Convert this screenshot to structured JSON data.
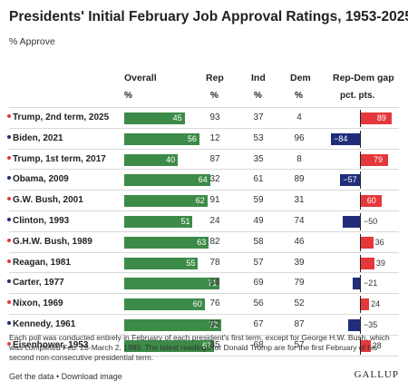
{
  "header": {
    "title": "Presidents' Initial February Job Approval Ratings, 1953-2025",
    "subtitle": "% Approve"
  },
  "columns": {
    "overall": "Overall",
    "rep": "Rep",
    "ind": "Ind",
    "dem": "Dem",
    "gap": "Rep-Dem gap",
    "pct": "%",
    "pts": "pct. pts."
  },
  "colors": {
    "overall_bar": "#3d8b48",
    "gap_positive": "#e5383b",
    "gap_negative": "#1f2d7a",
    "republican_dot": "#e5383b",
    "democrat_dot": "#1f2d7a"
  },
  "chart_data": {
    "type": "table",
    "title": "Presidents' Initial February Job Approval Ratings, 1953-2025",
    "subtitle": "% Approve",
    "columns": [
      "Overall",
      "Rep",
      "Ind",
      "Dem",
      "Rep-Dem gap"
    ],
    "rows": [
      {
        "president": "Trump, 2nd term, 2025",
        "party": "R",
        "overall": 45,
        "rep": 93,
        "ind": 37,
        "dem": 4,
        "gap": 89,
        "gap_label": "89"
      },
      {
        "president": "Biden, 2021",
        "party": "D",
        "overall": 56,
        "rep": 12,
        "ind": 53,
        "dem": 96,
        "gap": -84,
        "gap_label": "−84"
      },
      {
        "president": "Trump, 1st term, 2017",
        "party": "R",
        "overall": 40,
        "rep": 87,
        "ind": 35,
        "dem": 8,
        "gap": 79,
        "gap_label": "79"
      },
      {
        "president": "Obama, 2009",
        "party": "D",
        "overall": 64,
        "rep": 32,
        "ind": 61,
        "dem": 89,
        "gap": -57,
        "gap_label": "−57"
      },
      {
        "president": "G.W. Bush, 2001",
        "party": "R",
        "overall": 62,
        "rep": 91,
        "ind": 59,
        "dem": 31,
        "gap": 60,
        "gap_label": "60"
      },
      {
        "president": "Clinton, 1993",
        "party": "D",
        "overall": 51,
        "rep": 24,
        "ind": 49,
        "dem": 74,
        "gap": -50,
        "gap_label": "−50"
      },
      {
        "president": "G.H.W. Bush, 1989",
        "party": "R",
        "overall": 63,
        "rep": 82,
        "ind": 58,
        "dem": 46,
        "gap": 36,
        "gap_label": "36"
      },
      {
        "president": "Reagan, 1981",
        "party": "R",
        "overall": 55,
        "rep": 78,
        "ind": 57,
        "dem": 39,
        "gap": 39,
        "gap_label": "39"
      },
      {
        "president": "Carter, 1977",
        "party": "D",
        "overall": 71,
        "rep": 58,
        "ind": 69,
        "dem": 79,
        "gap": -21,
        "gap_label": "−21"
      },
      {
        "president": "Nixon, 1969",
        "party": "R",
        "overall": 60,
        "rep": 76,
        "ind": 56,
        "dem": 52,
        "gap": 24,
        "gap_label": "24"
      },
      {
        "president": "Kennedy, 1961",
        "party": "D",
        "overall": 72,
        "rep": 52,
        "ind": 67,
        "dem": 87,
        "gap": -35,
        "gap_label": "−35"
      },
      {
        "president": "Eisenhower, 1953",
        "party": "R",
        "overall": 67,
        "rep": 85,
        "ind": 68,
        "dem": 57,
        "gap": 28,
        "gap_label": "28"
      }
    ]
  },
  "footer": {
    "note": "Each poll was conducted entirely in February of each president's first term, except for George H.W. Bush, which was completed Feb. 28-March 2, 1989. The latest readings for Donald Trump are for the first February of his second non-consecutive presidential term.",
    "links": "Get the data • Download image",
    "brand": "GALLUP"
  }
}
